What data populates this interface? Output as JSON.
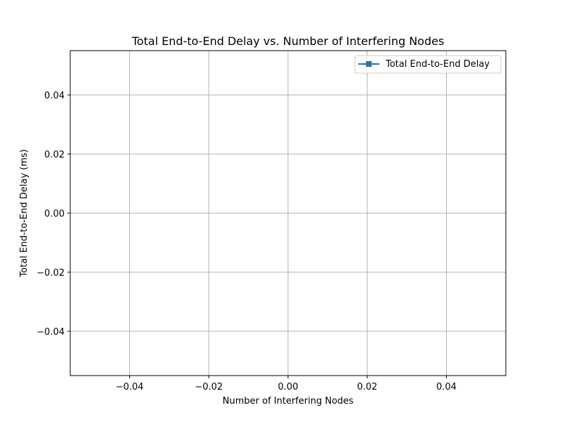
{
  "chart_data": {
    "type": "line",
    "title": "Total End-to-End Delay vs. Number of Interfering Nodes",
    "xlabel": "Number of Interfering Nodes",
    "ylabel": "Total End-to-End Delay (ms)",
    "xlim": [
      -0.055,
      0.055
    ],
    "ylim": [
      -0.055,
      0.055
    ],
    "xticks": [
      -0.04,
      -0.02,
      0.0,
      0.02,
      0.04
    ],
    "yticks": [
      -0.04,
      -0.02,
      0.0,
      0.02,
      0.04
    ],
    "xtick_labels": [
      "−0.04",
      "−0.02",
      "0.00",
      "0.02",
      "0.04"
    ],
    "ytick_labels": [
      "−0.04",
      "−0.02",
      "0.00",
      "0.02",
      "0.04"
    ],
    "grid": true,
    "legend_position": "top-right",
    "series": [
      {
        "name": "Total End-to-End Delay",
        "marker": "square",
        "color": "#1f77b4",
        "x": [],
        "y": []
      }
    ]
  }
}
